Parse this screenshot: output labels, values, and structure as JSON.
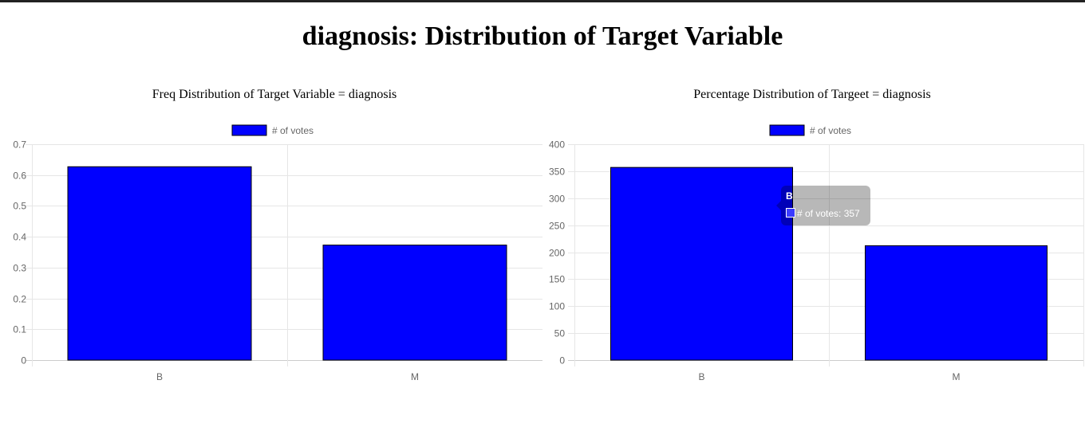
{
  "page": {
    "title": "diagnosis: Distribution of Target Variable"
  },
  "chart_data": [
    {
      "type": "bar",
      "title": "Freq Distribution of Target Variable = diagnosis",
      "categories": [
        "B",
        "M"
      ],
      "series": [
        {
          "name": "# of votes",
          "values": [
            0.627,
            0.373
          ],
          "color": "#0000ff"
        }
      ],
      "ylim": [
        0,
        0.7
      ],
      "yticks": [
        "0",
        "0.1",
        "0.2",
        "0.3",
        "0.4",
        "0.5",
        "0.6",
        "0.7"
      ],
      "grid": true,
      "legend": "top"
    },
    {
      "type": "bar",
      "title": "Percentage Distribution of Targeet = diagnosis",
      "categories": [
        "B",
        "M"
      ],
      "series": [
        {
          "name": "# of votes",
          "values": [
            357,
            212
          ],
          "color": "#0000ff"
        }
      ],
      "ylim": [
        0,
        400
      ],
      "yticks": [
        "0",
        "50",
        "100",
        "150",
        "200",
        "250",
        "300",
        "350",
        "400"
      ],
      "grid": true,
      "legend": "top"
    }
  ],
  "tooltip": {
    "title": "B",
    "label": "# of votes",
    "value": "357"
  }
}
